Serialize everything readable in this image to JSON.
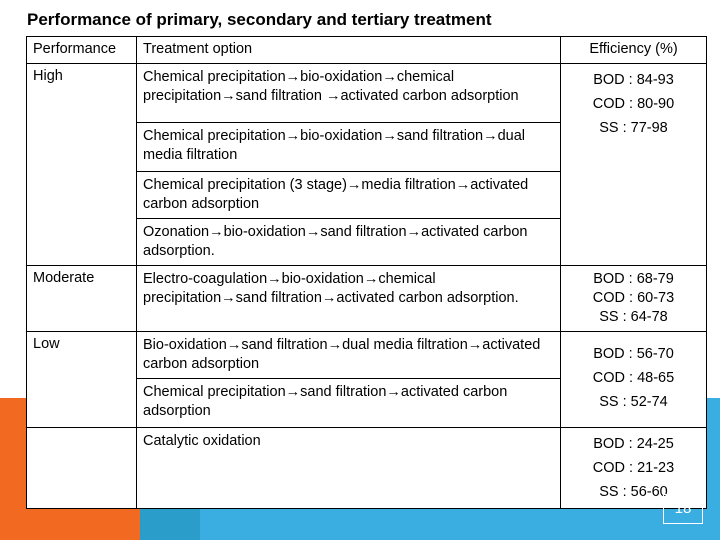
{
  "slide": {
    "title": "Performance of primary, secondary and tertiary treatment",
    "page_number": "18",
    "colors": {
      "accent_orange": "#f26a21",
      "accent_blue": "#3aaee0"
    }
  },
  "table": {
    "headers": {
      "performance": "Performance",
      "option": "Treatment option",
      "efficiency": "Efficiency  (%)"
    },
    "rows": [
      {
        "level": "High",
        "options": [
          "Chemical precipitation→bio-oxidation→chemical precipitation→sand filtration →activated carbon adsorption",
          "Chemical precipitation→bio-oxidation→sand filtration→dual media filtration",
          "Chemical precipitation (3 stage)→media filtration→activated carbon adsorption",
          "Ozonation→bio-oxidation→sand filtration→activated carbon adsorption."
        ],
        "efficiency": [
          "BOD : 84-93",
          "COD : 80-90",
          "SS : 77-98"
        ]
      },
      {
        "level": "Moderate",
        "options": [
          "Electro-coagulation→bio-oxidation→chemical precipitation→sand  filtration→activated carbon adsorption."
        ],
        "efficiency": [
          "BOD : 68-79",
          "COD : 60-73",
          "SS : 64-78"
        ]
      },
      {
        "level": "Low",
        "options": [
          "Bio-oxidation→sand filtration→dual media filtration→activated carbon adsorption",
          "Chemical precipitation→sand filtration→activated carbon adsorption"
        ],
        "efficiency": [
          "BOD : 56-70",
          "COD : 48-65",
          "SS : 52-74"
        ]
      },
      {
        "level": "",
        "options": [
          "Catalytic oxidation"
        ],
        "efficiency": [
          "BOD : 24-25",
          "COD : 21-23",
          "SS : 56-60"
        ]
      }
    ]
  }
}
